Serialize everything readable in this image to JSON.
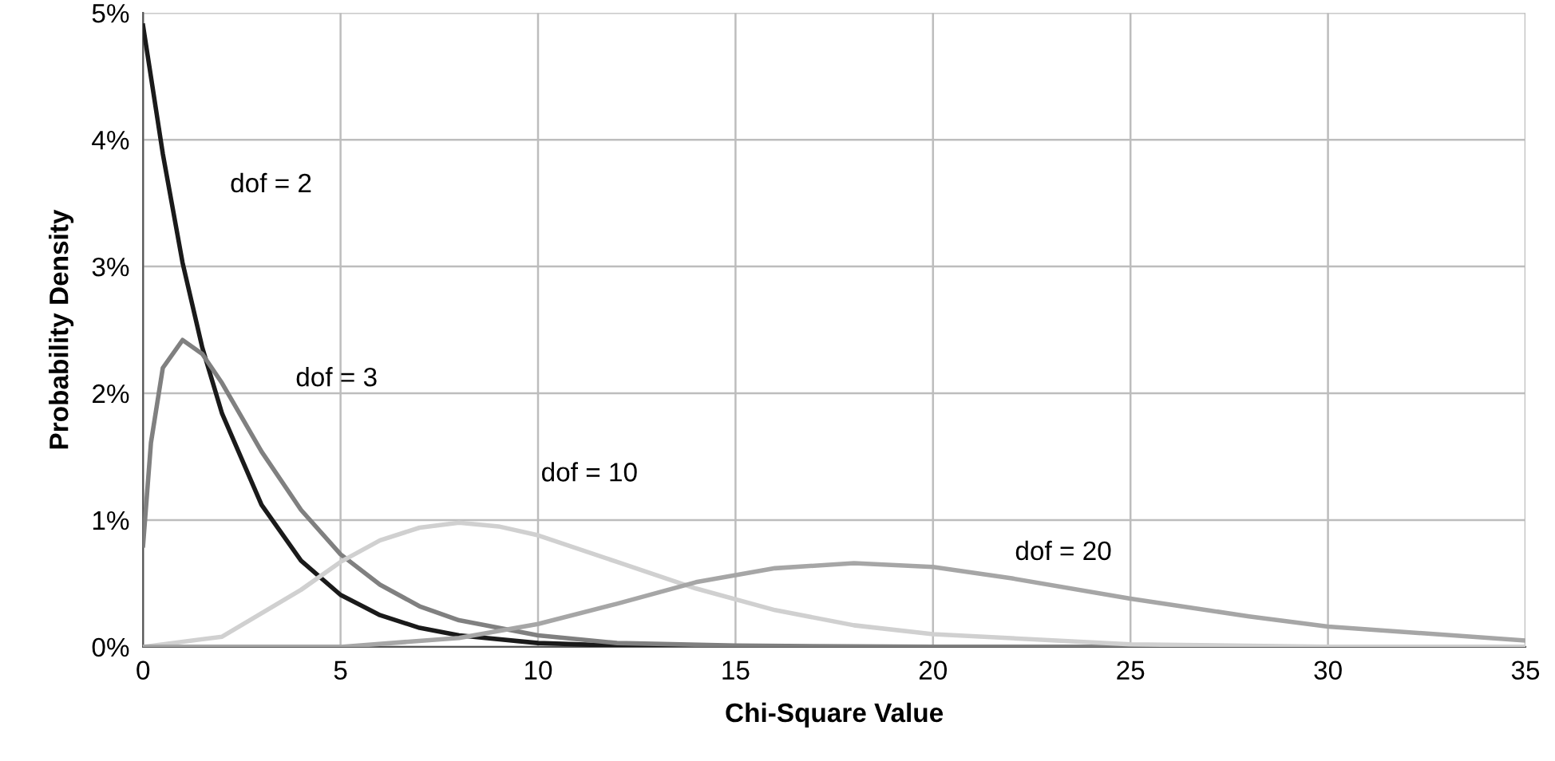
{
  "chart_data": {
    "type": "line",
    "xlabel": "Chi-Square Value",
    "ylabel": "Probability Density",
    "xlim": [
      0,
      35
    ],
    "xticks": [
      0,
      5,
      10,
      15,
      20,
      25,
      30,
      35
    ],
    "ylim": [
      0,
      5
    ],
    "yticks": [
      {
        "value": 0,
        "label": "0%"
      },
      {
        "value": 1,
        "label": "1%"
      },
      {
        "value": 2,
        "label": "2%"
      },
      {
        "value": 3,
        "label": "3%"
      },
      {
        "value": 4,
        "label": "4%"
      },
      {
        "value": 5,
        "label": "5%"
      }
    ],
    "grid": true,
    "legend": false,
    "marker": "none",
    "line_style": "solid",
    "series": [
      {
        "name": "dof = 2",
        "color": "#1a1a1a",
        "x": [
          0,
          0.5,
          1,
          1.5,
          2,
          3,
          4,
          5,
          6,
          7,
          8,
          10,
          12,
          15,
          20,
          35
        ],
        "values": [
          4.9,
          3.89,
          3.03,
          2.36,
          1.84,
          1.12,
          0.68,
          0.41,
          0.25,
          0.15,
          0.09,
          0.03,
          0.01,
          0,
          0,
          0
        ]
      },
      {
        "name": "dof = 3",
        "color": "#808080",
        "x": [
          0,
          0.2,
          0.5,
          1,
          1.5,
          2,
          3,
          4,
          5,
          6,
          7,
          8,
          10,
          12,
          15,
          20,
          35
        ],
        "values": [
          0.8,
          1.61,
          2.2,
          2.42,
          2.31,
          2.08,
          1.54,
          1.08,
          0.73,
          0.49,
          0.32,
          0.21,
          0.09,
          0.03,
          0.01,
          0,
          0
        ]
      },
      {
        "name": "dof = 10",
        "color": "#d0d0d0",
        "x": [
          0,
          2,
          4,
          5,
          6,
          7,
          8,
          9,
          10,
          12,
          14,
          16,
          18,
          20,
          25,
          30,
          35
        ],
        "values": [
          0,
          0.08,
          0.45,
          0.67,
          0.84,
          0.94,
          0.98,
          0.95,
          0.88,
          0.67,
          0.46,
          0.29,
          0.17,
          0.1,
          0.02,
          0,
          0
        ]
      },
      {
        "name": "dof = 20",
        "color": "#a6a6a6",
        "x": [
          0,
          3,
          5,
          8,
          10,
          12,
          14,
          16,
          18,
          20,
          22,
          25,
          28,
          30,
          35
        ],
        "values": [
          0,
          0,
          0,
          0.07,
          0.18,
          0.34,
          0.51,
          0.62,
          0.66,
          0.63,
          0.54,
          0.38,
          0.24,
          0.16,
          0.05
        ]
      }
    ]
  }
}
